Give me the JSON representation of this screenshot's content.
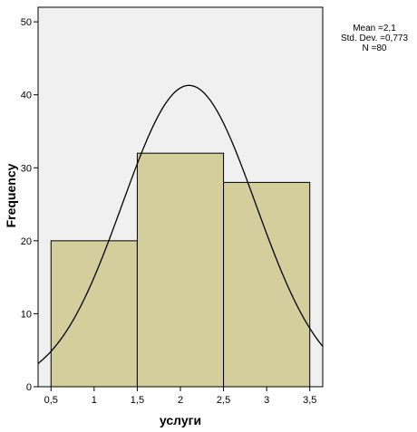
{
  "chart_data": {
    "type": "bar",
    "subtype": "histogram",
    "xlabel": "услуги",
    "ylabel": "Frequency",
    "xlim": [
      0.35,
      3.65
    ],
    "ylim": [
      0,
      52
    ],
    "x_ticks": [
      0.5,
      1,
      1.5,
      2,
      2.5,
      3,
      3.5
    ],
    "x_tick_labels": [
      "0,5",
      "1",
      "1,5",
      "2",
      "2,5",
      "3",
      "3,5"
    ],
    "y_ticks": [
      0,
      10,
      20,
      30,
      40,
      50
    ],
    "y_tick_labels": [
      "0",
      "10",
      "20",
      "30",
      "40",
      "50"
    ],
    "bins": [
      {
        "start": 0.5,
        "end": 1.5,
        "value": 20
      },
      {
        "start": 1.5,
        "end": 2.5,
        "value": 32
      },
      {
        "start": 2.5,
        "end": 3.5,
        "value": 28
      }
    ],
    "normal_curve": {
      "mean": 2.1,
      "sd": 0.773,
      "n": 80,
      "bin_width": 1
    },
    "stats_lines": [
      "Mean =2,1",
      "Std. Dev. =0,773",
      "N =80"
    ],
    "grid": false,
    "colors": {
      "plot_background": "#f0f0f0",
      "bar_fill": "#d3ce9b",
      "bar_stroke": "#000000",
      "curve": "#000000"
    }
  }
}
